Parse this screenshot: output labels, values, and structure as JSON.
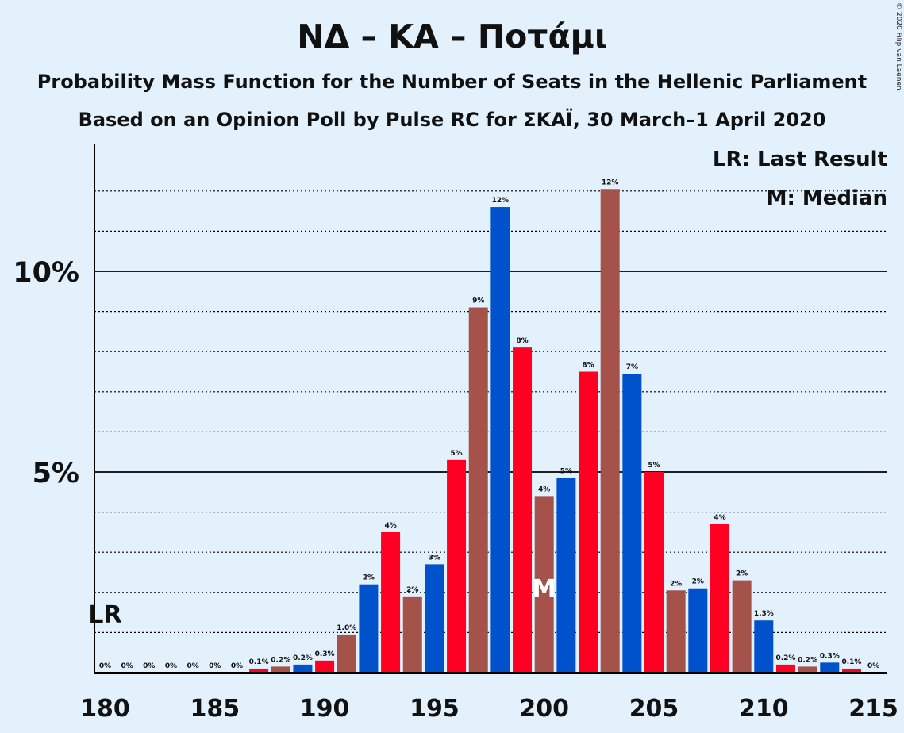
{
  "title": "ΝΔ – ΚΑ – Ποτάμι",
  "subtitle1": "Probability Mass Function for the Number of Seats in the Hellenic Parliament",
  "subtitle2": "Based on an Opinion Poll by Pulse RC for ΣΚΑΪ, 30 March–1 April 2020",
  "copyright": "© 2020 Filip van Laenen",
  "legend": {
    "last_result": "LR: Last Result",
    "median": "M: Median"
  },
  "markers": {
    "last_result_label": "LR",
    "median_label": "M",
    "last_result_seat": 180,
    "median_seat": 200
  },
  "colors": {
    "background": "#e3f1fd",
    "red": "#ff0022",
    "brown": "#a5524a",
    "blue": "#0052cc"
  },
  "chart_data": {
    "type": "bar",
    "x": [
      180,
      181,
      182,
      183,
      184,
      185,
      186,
      187,
      188,
      189,
      190,
      191,
      192,
      193,
      194,
      195,
      196,
      197,
      198,
      199,
      200,
      201,
      202,
      203,
      204,
      205,
      206,
      207,
      208,
      209,
      210,
      211,
      212,
      213,
      214,
      215
    ],
    "values": [
      0,
      0,
      0,
      0,
      0,
      0,
      0,
      0.1,
      0.15,
      0.2,
      0.3,
      0.95,
      2.2,
      3.5,
      1.9,
      2.7,
      5.3,
      9.1,
      11.6,
      8.1,
      4.4,
      4.85,
      7.5,
      12.05,
      7.45,
      5.0,
      2.05,
      2.1,
      3.7,
      2.3,
      1.3,
      0.2,
      0.15,
      0.25,
      0.1,
      0
    ],
    "labels": [
      "0%",
      "0%",
      "0%",
      "0%",
      "0%",
      "0%",
      "0%",
      "0.1%",
      "0.2%",
      "0.2%",
      "0.3%",
      "1.0%",
      "2%",
      "4%",
      "2%",
      "3%",
      "5%",
      "9%",
      "12%",
      "8%",
      "4%",
      "5%",
      "8%",
      "12%",
      "7%",
      "5%",
      "2%",
      "2%",
      "4%",
      "2%",
      "1.3%",
      "0.2%",
      "0.2%",
      "0.3%",
      "0.1%",
      "0%"
    ],
    "bar_colors": [
      "red",
      "brown",
      "blue",
      "red",
      "brown",
      "blue",
      "red",
      "red",
      "brown",
      "blue",
      "red",
      "brown",
      "blue",
      "red",
      "brown",
      "blue",
      "red",
      "brown",
      "blue",
      "red",
      "brown",
      "blue",
      "red",
      "brown",
      "blue",
      "red",
      "brown",
      "blue",
      "red",
      "brown",
      "blue",
      "red",
      "brown",
      "blue",
      "red",
      "brown"
    ],
    "xticks": [
      180,
      185,
      190,
      195,
      200,
      205,
      210,
      215
    ],
    "xtick_labels": [
      "180",
      "185",
      "190",
      "195",
      "200",
      "205",
      "210",
      "215"
    ],
    "yticks": [
      5,
      10
    ],
    "ytick_labels": [
      "5%",
      "10%"
    ],
    "ylim": [
      0,
      12.6
    ],
    "grid": "dotted every 1%, solid at 5% and 10%",
    "legend_position": "top-right"
  }
}
